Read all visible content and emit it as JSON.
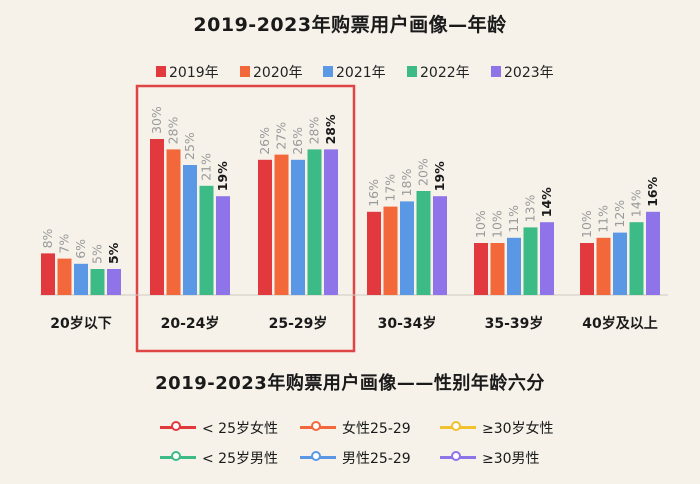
{
  "chart_data": {
    "type": "bar",
    "title": "2019-2023年购票用户画像—年龄",
    "categories": [
      "20岁以下",
      "20-24岁",
      "25-29岁",
      "30-34岁",
      "35-39岁",
      "40岁及以上"
    ],
    "series": [
      {
        "name": "2019年",
        "color": "#e2393f",
        "values": [
          8,
          30,
          26,
          16,
          10,
          10
        ]
      },
      {
        "name": "2020年",
        "color": "#f2683a",
        "values": [
          7,
          28,
          27,
          17,
          10,
          11
        ]
      },
      {
        "name": "2021年",
        "color": "#5a98e6",
        "values": [
          6,
          25,
          26,
          18,
          11,
          12
        ]
      },
      {
        "name": "2022年",
        "color": "#3dbb86",
        "values": [
          5,
          21,
          28,
          20,
          13,
          14
        ]
      },
      {
        "name": "2023年",
        "color": "#8f73e8",
        "values": [
          5,
          19,
          28,
          19,
          14,
          16
        ]
      }
    ],
    "value_suffix": "%",
    "ylim": [
      0,
      35
    ],
    "grid": false,
    "legend_position": "top",
    "highlight_categories": [
      "20-24岁",
      "25-29岁"
    ],
    "highlight_color": "#e04545"
  },
  "legend2": {
    "title": "2019-2023年购票用户画像——性别年龄六分",
    "items": [
      {
        "label": "< 25岁女性",
        "color": "#e2393f"
      },
      {
        "label": "女性25-29",
        "color": "#f2683a"
      },
      {
        "label": "≥30岁女性",
        "color": "#f2c12e"
      },
      {
        "label": "< 25岁男性",
        "color": "#3dbb86"
      },
      {
        "label": "男性25-29",
        "color": "#5a98e6"
      },
      {
        "label": "≥30男性",
        "color": "#8f73e8"
      }
    ]
  }
}
